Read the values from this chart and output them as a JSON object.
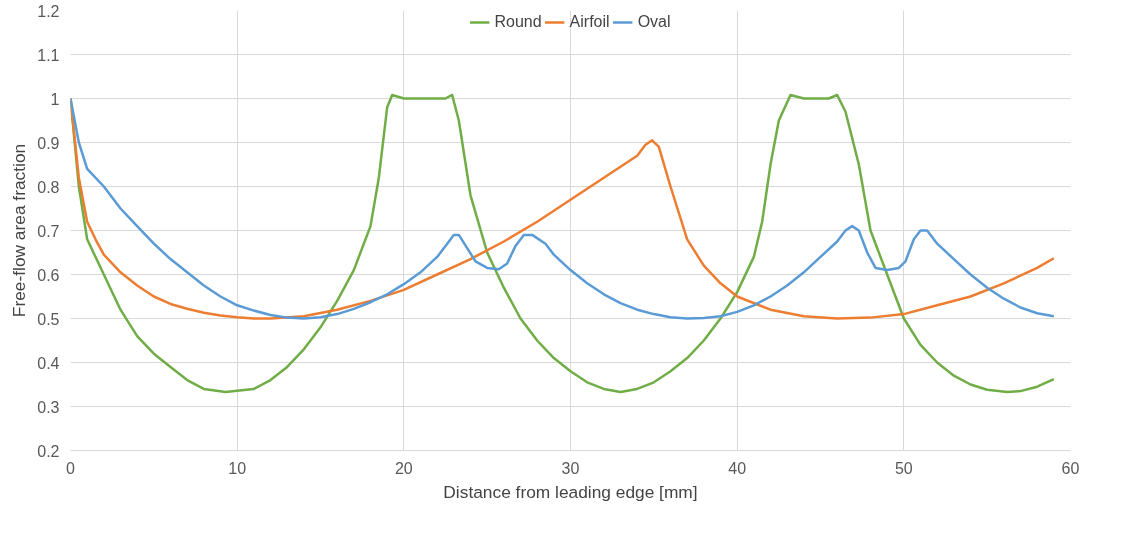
{
  "chart_data": {
    "type": "line",
    "xlabel": "Distance from leading edge [mm]",
    "ylabel": "Free-flow area fraction",
    "xlim": [
      0,
      60
    ],
    "xticks": [
      0,
      10,
      20,
      30,
      40,
      50,
      60
    ],
    "ylim": [
      0.2,
      1.2
    ],
    "yticks": [
      {
        "value": 0.2,
        "label": "0.2"
      },
      {
        "value": 0.3,
        "label": "0.3"
      },
      {
        "value": 0.4,
        "label": "0.4"
      },
      {
        "value": 0.5,
        "label": "0.5"
      },
      {
        "value": 0.6,
        "label": "0.6"
      },
      {
        "value": 0.7,
        "label": "0.7"
      },
      {
        "value": 0.8,
        "label": "0.8"
      },
      {
        "value": 0.9,
        "label": "0.9"
      },
      {
        "value": 1,
        "label": "1"
      },
      {
        "value": 1.1,
        "label": "1.1"
      },
      {
        "value": 1.2,
        "label": "1.2"
      }
    ],
    "grid": true,
    "legend": "top",
    "marker": "none",
    "line_style": "solid",
    "series": [
      {
        "name": "Round",
        "color": "#70ad47",
        "x": [
          0,
          0.5,
          1,
          2,
          3,
          4,
          5,
          6,
          7,
          8,
          9.3,
          11,
          12,
          13,
          14,
          15,
          16,
          17,
          18,
          18.5,
          19,
          19.3,
          20,
          22.5,
          22.9,
          23.3,
          24,
          25,
          26,
          27,
          28,
          29,
          30,
          31,
          32,
          33,
          34,
          35,
          36,
          37,
          38,
          39,
          40,
          41,
          41.5,
          42,
          42.5,
          43.2,
          44,
          45.5,
          46,
          46.5,
          47.3,
          48,
          49,
          50,
          51,
          52,
          53,
          54,
          55,
          56.2,
          57,
          58,
          59
        ],
        "values": [
          1.0,
          0.8,
          0.68,
          0.6,
          0.52,
          0.46,
          0.42,
          0.39,
          0.36,
          0.34,
          0.333,
          0.34,
          0.36,
          0.39,
          0.43,
          0.48,
          0.54,
          0.61,
          0.71,
          0.82,
          0.98,
          1.008,
          1.0,
          1.0,
          1.008,
          0.95,
          0.78,
          0.65,
          0.57,
          0.5,
          0.45,
          0.41,
          0.38,
          0.355,
          0.34,
          0.333,
          0.34,
          0.355,
          0.38,
          0.41,
          0.45,
          0.5,
          0.56,
          0.64,
          0.72,
          0.85,
          0.95,
          1.008,
          1.0,
          1.0,
          1.008,
          0.97,
          0.85,
          0.7,
          0.6,
          0.5,
          0.44,
          0.4,
          0.37,
          0.35,
          0.338,
          0.333,
          0.335,
          0.345,
          0.362
        ]
      },
      {
        "name": "Airfoil",
        "color": "#ed7d31",
        "x": [
          0,
          0.5,
          1,
          1.5,
          2,
          3,
          4,
          5,
          6,
          7,
          8,
          9,
          10,
          11,
          12,
          14,
          16,
          18,
          20,
          22,
          24,
          26,
          28,
          30,
          32,
          34,
          34.5,
          34.9,
          35.3,
          36,
          37,
          38,
          39,
          40,
          42,
          44,
          46,
          48,
          50,
          52,
          54,
          56,
          58,
          59
        ],
        "values": [
          1.0,
          0.82,
          0.72,
          0.68,
          0.645,
          0.605,
          0.575,
          0.55,
          0.533,
          0.522,
          0.513,
          0.507,
          0.503,
          0.5,
          0.5,
          0.505,
          0.52,
          0.54,
          0.565,
          0.6,
          0.635,
          0.675,
          0.72,
          0.77,
          0.82,
          0.87,
          0.895,
          0.905,
          0.89,
          0.8,
          0.68,
          0.62,
          0.58,
          0.55,
          0.52,
          0.505,
          0.5,
          0.502,
          0.51,
          0.53,
          0.55,
          0.58,
          0.615,
          0.637
        ]
      },
      {
        "name": "Oval",
        "color": "#5b9bd5",
        "x": [
          0,
          0.5,
          1,
          2,
          3,
          4,
          5,
          6,
          7,
          8,
          9,
          10,
          11,
          12,
          13,
          14,
          15,
          16,
          17,
          18,
          19,
          20,
          21,
          22,
          22.5,
          23,
          23.3,
          23.8,
          24.3,
          25,
          25.7,
          26.2,
          26.7,
          27.2,
          27.7,
          28.5,
          29,
          30,
          31,
          32,
          33,
          34,
          35,
          36,
          37,
          38,
          39,
          40,
          41,
          42,
          43,
          44,
          45,
          46,
          46.5,
          46.9,
          47.3,
          47.8,
          48.3,
          49,
          49.7,
          50.1,
          50.6,
          51,
          51.4,
          52,
          53,
          54,
          55,
          56,
          57,
          58,
          59
        ],
        "values": [
          1.0,
          0.9,
          0.84,
          0.8,
          0.75,
          0.71,
          0.67,
          0.635,
          0.605,
          0.575,
          0.55,
          0.53,
          0.518,
          0.508,
          0.502,
          0.5,
          0.503,
          0.51,
          0.522,
          0.537,
          0.555,
          0.578,
          0.605,
          0.64,
          0.665,
          0.69,
          0.69,
          0.66,
          0.63,
          0.615,
          0.612,
          0.625,
          0.665,
          0.69,
          0.69,
          0.67,
          0.645,
          0.61,
          0.58,
          0.555,
          0.535,
          0.52,
          0.51,
          0.503,
          0.5,
          0.501,
          0.505,
          0.515,
          0.53,
          0.55,
          0.575,
          0.605,
          0.64,
          0.675,
          0.7,
          0.71,
          0.7,
          0.65,
          0.615,
          0.61,
          0.615,
          0.63,
          0.68,
          0.7,
          0.7,
          0.67,
          0.635,
          0.6,
          0.57,
          0.545,
          0.525,
          0.512,
          0.505
        ]
      }
    ]
  }
}
